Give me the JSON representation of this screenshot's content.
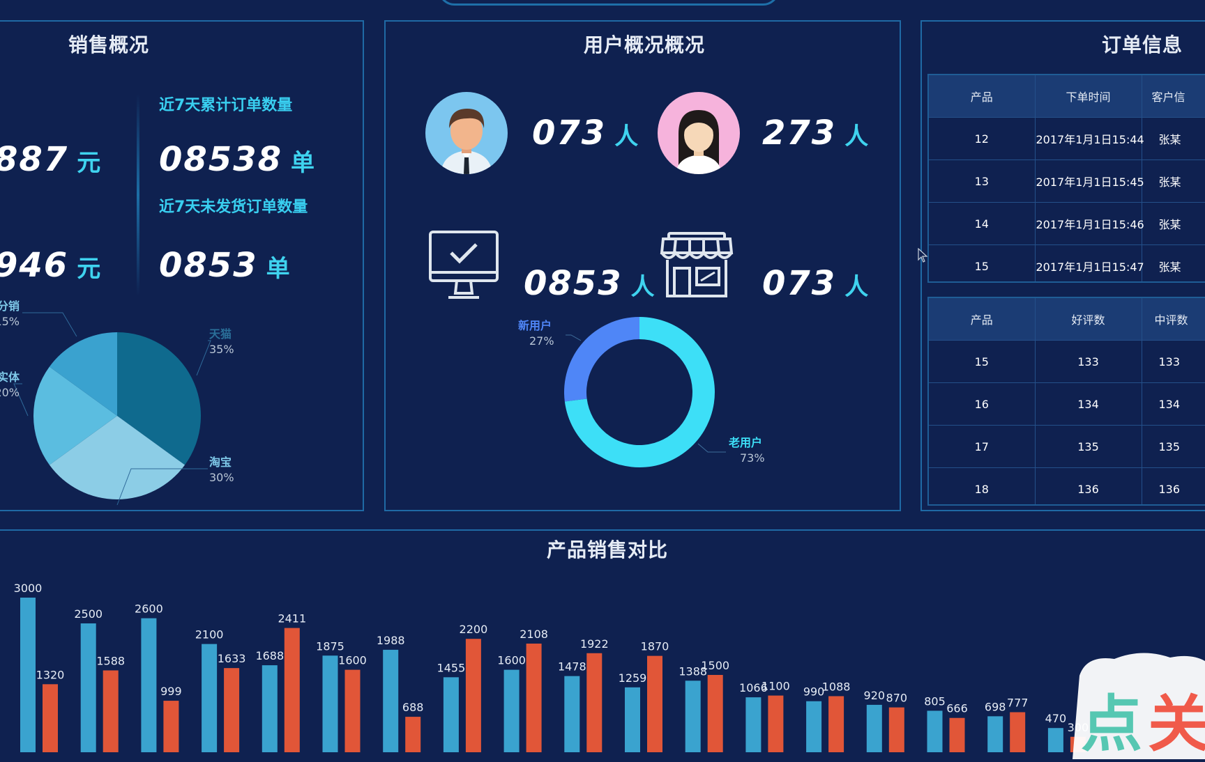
{
  "sales": {
    "title": "销售概况",
    "amount1": "887",
    "amount2": "946",
    "amount_unit": "元",
    "orders7d_label": "近7天累计订单数量",
    "orders7d_value": "08538",
    "unshipped7d_label": "近7天未发货订单数量",
    "unshipped7d_value": "0853",
    "order_unit": "单",
    "pie": {
      "type": "pie",
      "slices": [
        {
          "name": "天猫",
          "value": 35,
          "label": "35%",
          "color": "#0f6a8e"
        },
        {
          "name": "淘宝",
          "value": 30,
          "label": "30%",
          "color": "#8ccde6"
        },
        {
          "name": "实体",
          "value": 20,
          "label": "20%",
          "color": "#5bbde0"
        },
        {
          "name": "分销",
          "value": 15,
          "label": "15%",
          "color": "#3aa2cf"
        }
      ]
    }
  },
  "users": {
    "title": "用户概况概况",
    "male_count": "073",
    "female_count": "273",
    "online_count": "0853",
    "store_count": "073",
    "unit": "人",
    "icons": [
      "male-avatar-icon",
      "female-avatar-icon",
      "monitor-check-icon",
      "storefront-icon"
    ],
    "donut": {
      "type": "pie",
      "slices": [
        {
          "name": "新用户",
          "value": 27,
          "label": "27%",
          "color": "#4f86f7"
        },
        {
          "name": "老用户",
          "value": 73,
          "label": "73%",
          "color": "#3ddff7"
        }
      ]
    }
  },
  "orders": {
    "title": "订单信息",
    "table1": {
      "headers": [
        "产品",
        "下单时间",
        "客户信"
      ],
      "rows": [
        [
          "12",
          "2017年1月1日15:44",
          "张某"
        ],
        [
          "13",
          "2017年1月1日15:45",
          "张某"
        ],
        [
          "14",
          "2017年1月1日15:46",
          "张某"
        ],
        [
          "15",
          "2017年1月1日15:47",
          "张某"
        ]
      ]
    },
    "table2": {
      "headers": [
        "产品",
        "好评数",
        "中评数"
      ],
      "rows": [
        [
          "15",
          "133",
          "133"
        ],
        [
          "16",
          "134",
          "134"
        ],
        [
          "17",
          "135",
          "135"
        ],
        [
          "18",
          "136",
          "136"
        ]
      ]
    }
  },
  "product_chart": {
    "title": "产品销售对比",
    "chart_data": {
      "type": "bar",
      "series": [
        {
          "color": "#3aa3cf",
          "values": [
            3000,
            2500,
            2600,
            2100,
            1688,
            1875,
            1988,
            1455,
            1600,
            1478,
            1259,
            1388,
            1066,
            990,
            920,
            805,
            698,
            470
          ]
        },
        {
          "color": "#e15638",
          "values": [
            1320,
            1588,
            999,
            1633,
            2411,
            1600,
            688,
            2200,
            2108,
            1922,
            1870,
            1500,
            1100,
            1088,
            870,
            666,
            777,
            300
          ]
        }
      ],
      "ylim": [
        0,
        3300
      ]
    }
  },
  "watermark_text": "点关"
}
